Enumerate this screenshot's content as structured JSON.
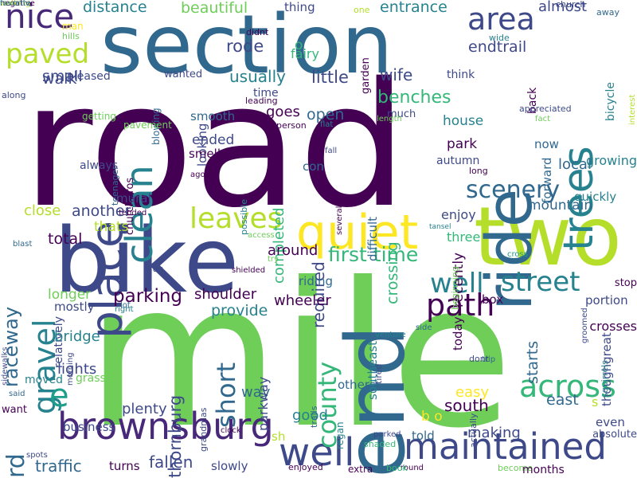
{
  "palette": {
    "background": "#ffffff",
    "colormap": "viridis",
    "dark_purple": "#440154",
    "indigo": "#482878",
    "blue_purple": "#3e4989",
    "slate_blue": "#31688e",
    "blue": "#26828e",
    "teal": "#1f9e89",
    "green_teal": "#35b779",
    "green": "#6ece58",
    "lime": "#b5de2b",
    "yellow": "#fde725"
  },
  "words": [
    {
      "text": "road",
      "color": "#440154",
      "orientation": "horizontal"
    },
    {
      "text": "mile",
      "color": "#6ece58",
      "orientation": "horizontal"
    },
    {
      "text": "section",
      "color": "#31688e",
      "orientation": "horizontal"
    },
    {
      "text": "bike",
      "color": "#3e4989",
      "orientation": "horizontal"
    },
    {
      "text": "two",
      "color": "#b5de2b",
      "orientation": "horizontal"
    },
    {
      "text": "ride",
      "color": "#31688e",
      "orientation": "vertical"
    },
    {
      "text": "end",
      "color": "#31688e",
      "orientation": "vertical"
    },
    {
      "text": "quiet",
      "color": "#fde725",
      "orientation": "horizontal"
    },
    {
      "text": "trees",
      "color": "#26828e",
      "orientation": "vertical"
    },
    {
      "text": "brownsburg",
      "color": "#482878",
      "orientation": "horizontal"
    },
    {
      "text": "maintained",
      "color": "#3e4989",
      "orientation": "horizontal"
    },
    {
      "text": "well",
      "color": "#3e4989",
      "orientation": "horizontal"
    },
    {
      "text": "nice",
      "color": "#482878",
      "orientation": "horizontal"
    },
    {
      "text": "path",
      "color": "#440154",
      "orientation": "horizontal"
    },
    {
      "text": "scenery",
      "color": "#31688e",
      "orientation": "horizontal"
    },
    {
      "text": "street",
      "color": "#26828e",
      "orientation": "horizontal"
    },
    {
      "text": "across",
      "color": "#35b779",
      "orientation": "horizontal"
    },
    {
      "text": "area",
      "color": "#3e4989",
      "orientation": "horizontal"
    },
    {
      "text": "leaves",
      "color": "#b5de2b",
      "orientation": "horizontal"
    },
    {
      "text": "place",
      "color": "#3e4989",
      "orientation": "vertical"
    },
    {
      "text": "clean",
      "color": "#26828e",
      "orientation": "vertical"
    },
    {
      "text": "paved",
      "color": "#b5de2b",
      "orientation": "horizontal"
    },
    {
      "text": "raceway",
      "color": "#31688e",
      "orientation": "vertical"
    },
    {
      "text": "gravel",
      "color": "#26828e",
      "orientation": "vertical"
    },
    {
      "text": "county",
      "color": "#35b779",
      "orientation": "vertical"
    },
    {
      "text": "short",
      "color": "#31688e",
      "orientation": "vertical"
    },
    {
      "text": "e",
      "color": "#1f9e89",
      "orientation": "horizontal"
    },
    {
      "text": "well",
      "color": "#26828e",
      "orientation": "horizontal"
    },
    {
      "text": "parking",
      "color": "#440154",
      "orientation": "horizontal"
    },
    {
      "text": "first time",
      "color": "#35b779",
      "orientation": "horizontal"
    },
    {
      "text": "thornburg",
      "color": "#3e4989",
      "orientation": "vertical"
    },
    {
      "text": "rd",
      "color": "#31688e",
      "orientation": "vertical"
    },
    {
      "text": "traffic",
      "color": "#31688e",
      "orientation": "horizontal"
    },
    {
      "text": "fallen",
      "color": "#3e4989",
      "orientation": "horizontal"
    },
    {
      "text": "south",
      "color": "#440154",
      "orientation": "horizontal"
    },
    {
      "text": "east",
      "color": "#31688e",
      "orientation": "horizontal"
    },
    {
      "text": "local",
      "color": "#31688e",
      "orientation": "horizontal"
    },
    {
      "text": "mountain",
      "color": "#31688e",
      "orientation": "horizontal"
    },
    {
      "text": "park",
      "color": "#440154",
      "orientation": "horizontal"
    },
    {
      "text": "crossing",
      "color": "#35b779",
      "orientation": "vertical"
    },
    {
      "text": "open",
      "color": "#31688e",
      "orientation": "horizontal"
    },
    {
      "text": "wife",
      "color": "#3e4989",
      "orientation": "horizontal"
    },
    {
      "text": "little",
      "color": "#3e4989",
      "orientation": "horizontal"
    },
    {
      "text": "benches",
      "color": "#35b779",
      "orientation": "horizontal"
    },
    {
      "text": "rode",
      "color": "#3e4989",
      "orientation": "horizontal"
    },
    {
      "text": "usually",
      "color": "#26828e",
      "orientation": "horizontal"
    },
    {
      "text": "walk",
      "color": "#3e4989",
      "orientation": "horizontal"
    },
    {
      "text": "small",
      "color": "#3e4989",
      "orientation": "horizontal"
    },
    {
      "text": "distance",
      "color": "#26828e",
      "orientation": "horizontal"
    },
    {
      "text": "beautiful",
      "color": "#6ece58",
      "orientation": "horizontal"
    },
    {
      "text": "entrance",
      "color": "#26828e",
      "orientation": "horizontal"
    },
    {
      "text": "almost",
      "color": "#3e4989",
      "orientation": "horizontal"
    },
    {
      "text": "endtrail",
      "color": "#3e4989",
      "orientation": "horizontal"
    },
    {
      "text": "thing",
      "color": "#3e4989",
      "orientation": "horizontal"
    },
    {
      "text": "fairy",
      "color": "#35b779",
      "orientation": "horizontal"
    },
    {
      "text": "o",
      "color": "#35b779",
      "orientation": "horizontal"
    },
    {
      "text": "garden",
      "color": "#440154",
      "orientation": "vertical"
    },
    {
      "text": "one",
      "color": "#b5de2b",
      "orientation": "horizontal"
    },
    {
      "text": "away",
      "color": "#31688e",
      "orientation": "horizontal"
    },
    {
      "text": "church",
      "color": "#3e4989",
      "orientation": "horizontal"
    },
    {
      "text": "wide",
      "color": "#26828e",
      "orientation": "horizontal"
    },
    {
      "text": "man",
      "color": "#fde725",
      "orientation": "horizontal"
    },
    {
      "text": "hills",
      "color": "#6ece58",
      "orientation": "horizontal"
    },
    {
      "text": "didnt",
      "color": "#440154",
      "orientation": "horizontal"
    },
    {
      "text": "pleased",
      "color": "#3e4989",
      "orientation": "horizontal"
    },
    {
      "text": "wanted",
      "color": "#3e4989",
      "orientation": "horizontal"
    },
    {
      "text": "think",
      "color": "#3e4989",
      "orientation": "horizontal"
    },
    {
      "text": "back",
      "color": "#440154",
      "orientation": "vertical"
    },
    {
      "text": "fact",
      "color": "#6ece58",
      "orientation": "horizontal"
    },
    {
      "text": "interest",
      "color": "#b5de2b",
      "orientation": "vertical"
    },
    {
      "text": "bicycle",
      "color": "#26828e",
      "orientation": "vertical"
    },
    {
      "text": "time",
      "color": "#3e4989",
      "orientation": "horizontal"
    },
    {
      "text": "leading",
      "color": "#440154",
      "orientation": "horizontal"
    },
    {
      "text": "along",
      "color": "#3e4989",
      "orientation": "horizontal"
    },
    {
      "text": "blowing",
      "color": "#31688e",
      "orientation": "vertical"
    },
    {
      "text": "getting",
      "color": "#6ece58",
      "orientation": "horizontal"
    },
    {
      "text": "goes",
      "color": "#440154",
      "orientation": "horizontal"
    },
    {
      "text": "much",
      "color": "#3e4989",
      "orientation": "horizontal"
    },
    {
      "text": "person",
      "color": "#440154",
      "orientation": "horizontal"
    },
    {
      "text": "flat",
      "color": "#26828e",
      "orientation": "horizontal"
    },
    {
      "text": "length",
      "color": "#6ece58",
      "orientation": "horizontal"
    },
    {
      "text": "appreciated",
      "color": "#3e4989",
      "orientation": "horizontal"
    },
    {
      "text": "now",
      "color": "#31688e",
      "orientation": "horizontal"
    },
    {
      "text": "house",
      "color": "#26828e",
      "orientation": "horizontal"
    },
    {
      "text": "growing",
      "color": "#26828e",
      "orientation": "horizontal"
    },
    {
      "text": "forward",
      "color": "#31688e",
      "orientation": "vertical"
    },
    {
      "text": "smooth",
      "color": "#31688e",
      "orientation": "horizontal"
    },
    {
      "text": "looking",
      "color": "#3e4989",
      "orientation": "vertical"
    },
    {
      "text": "ended",
      "color": "#3e4989",
      "orientation": "horizontal"
    },
    {
      "text": "smells",
      "color": "#440154",
      "orientation": "horizontal"
    },
    {
      "text": "fall",
      "color": "#3e4989",
      "orientation": "horizontal"
    },
    {
      "text": "con",
      "color": "#31688e",
      "orientation": "horizontal"
    },
    {
      "text": "autumn",
      "color": "#3e4989",
      "orientation": "horizontal"
    },
    {
      "text": "long",
      "color": "#440154",
      "orientation": "horizontal"
    },
    {
      "text": "blast",
      "color": "#31688e",
      "orientation": "horizontal"
    },
    {
      "text": "always",
      "color": "#3e4989",
      "orientation": "horizontal"
    },
    {
      "text": "pavement",
      "color": "#6ece58",
      "orientation": "horizontal"
    },
    {
      "text": "churchpros",
      "color": "#440154",
      "orientation": "vertical"
    },
    {
      "text": "teenager",
      "color": "#31688e",
      "orientation": "vertical"
    },
    {
      "text": "ago",
      "color": "#440154",
      "orientation": "horizontal"
    },
    {
      "text": "quickly",
      "color": "#26828e",
      "orientation": "horizontal"
    },
    {
      "text": "another",
      "color": "#3e4989",
      "orientation": "horizontal"
    },
    {
      "text": "close",
      "color": "#b5de2b",
      "orientation": "horizontal"
    },
    {
      "text": "mural",
      "color": "#3e4989",
      "orientation": "horizontal"
    },
    {
      "text": "completed",
      "color": "#35b779",
      "orientation": "vertical"
    },
    {
      "text": "difficult",
      "color": "#31688e",
      "orientation": "vertical"
    },
    {
      "text": "enjoy",
      "color": "#3e4989",
      "orientation": "horizontal"
    },
    {
      "text": "possible",
      "color": "#26828e",
      "orientation": "vertical"
    },
    {
      "text": "several",
      "color": "#440154",
      "orientation": "vertical"
    },
    {
      "text": "tansel",
      "color": "#26828e",
      "orientation": "horizontal"
    },
    {
      "text": "tended",
      "color": "#440154",
      "orientation": "horizontal"
    },
    {
      "text": "access",
      "color": "#6ece58",
      "orientation": "horizontal"
    },
    {
      "text": "thats",
      "color": "#b5de2b",
      "orientation": "horizontal"
    },
    {
      "text": "total",
      "color": "#440154",
      "orientation": "horizontal"
    },
    {
      "text": "around",
      "color": "#440154",
      "orientation": "horizontal"
    },
    {
      "text": "three",
      "color": "#35b779",
      "orientation": "horizontal"
    },
    {
      "text": "recently",
      "color": "#440154",
      "orientation": "vertical"
    },
    {
      "text": "cross",
      "color": "#1f9e89",
      "orientation": "horizontal"
    },
    {
      "text": "stop",
      "color": "#440154",
      "orientation": "horizontal"
    },
    {
      "text": "run",
      "color": "#3e4989",
      "orientation": "horizontal"
    },
    {
      "text": "try",
      "color": "#6ece58",
      "orientation": "horizontal"
    },
    {
      "text": "required",
      "color": "#3e4989",
      "orientation": "vertical"
    },
    {
      "text": "beginning",
      "color": "#6ece58",
      "orientation": "vertical"
    },
    {
      "text": "shielded",
      "color": "#440154",
      "orientation": "horizontal"
    },
    {
      "text": "riding",
      "color": "#31688e",
      "orientation": "horizontal"
    },
    {
      "text": "longer",
      "color": "#6ece58",
      "orientation": "horizontal"
    },
    {
      "text": "shoulder",
      "color": "#440154",
      "orientation": "horizontal"
    },
    {
      "text": "box",
      "color": "#440154",
      "orientation": "horizontal"
    },
    {
      "text": "portion",
      "color": "#3e4989",
      "orientation": "horizontal"
    },
    {
      "text": "mostly",
      "color": "#3e4989",
      "orientation": "horizontal"
    },
    {
      "text": "provide",
      "color": "#26828e",
      "orientation": "horizontal"
    },
    {
      "text": "wheeler",
      "color": "#440154",
      "orientation": "horizontal"
    },
    {
      "text": "right",
      "color": "#26828e",
      "orientation": "horizontal"
    },
    {
      "text": "lot",
      "color": "#31688e",
      "orientation": "horizontal"
    },
    {
      "text": "side",
      "color": "#31688e",
      "orientation": "horizontal"
    },
    {
      "text": "groomed",
      "color": "#3e4989",
      "orientation": "vertical"
    },
    {
      "text": "crosses",
      "color": "#440154",
      "orientation": "horizontal"
    },
    {
      "text": "relatively",
      "color": "#3e4989",
      "orientation": "vertical"
    },
    {
      "text": "round",
      "color": "#440154",
      "orientation": "horizontal"
    },
    {
      "text": "today",
      "color": "#440154",
      "orientation": "vertical"
    },
    {
      "text": "bridge",
      "color": "#26828e",
      "orientation": "horizontal"
    },
    {
      "text": "others",
      "color": "#31688e",
      "orientation": "horizontal"
    },
    {
      "text": "venture",
      "color": "#26828e",
      "orientation": "horizontal"
    },
    {
      "text": "trip",
      "color": "#31688e",
      "orientation": "horizontal"
    },
    {
      "text": "thoughgreat",
      "color": "#3e4989",
      "orientation": "vertical"
    },
    {
      "text": "sidewalks",
      "color": "#3e4989",
      "orientation": "vertical"
    },
    {
      "text": "morning",
      "color": "#3e4989",
      "orientation": "vertical"
    },
    {
      "text": "moved",
      "color": "#26828e",
      "orientation": "horizontal"
    },
    {
      "text": "plenty",
      "color": "#3e4989",
      "orientation": "horizontal"
    },
    {
      "text": "way",
      "color": "#31688e",
      "orientation": "horizontal"
    },
    {
      "text": "parkway",
      "color": "#3e4989",
      "orientation": "vertical"
    },
    {
      "text": "southeast",
      "color": "#26828e",
      "orientation": "vertical"
    },
    {
      "text": "starts",
      "color": "#31688e",
      "orientation": "vertical"
    },
    {
      "text": "squirrels",
      "color": "#26828e",
      "orientation": "vertical"
    },
    {
      "text": "dont",
      "color": "#3e4989",
      "orientation": "horizontal"
    },
    {
      "text": "said",
      "color": "#31688e",
      "orientation": "horizontal"
    },
    {
      "text": "lights",
      "color": "#3e4989",
      "orientation": "horizontal"
    },
    {
      "text": "grass",
      "color": "#6ece58",
      "orientation": "horizontal"
    },
    {
      "text": "tired",
      "color": "#3e4989",
      "orientation": "vertical"
    },
    {
      "text": "good",
      "color": "#26828e",
      "orientation": "horizontal"
    },
    {
      "text": "easy",
      "color": "#fde725",
      "orientation": "horizontal"
    },
    {
      "text": "want",
      "color": "#440154",
      "orientation": "horizontal"
    },
    {
      "text": "grandmas",
      "color": "#3e4989",
      "orientation": "vertical"
    },
    {
      "text": "b o",
      "color": "#fde725",
      "orientation": "horizontal"
    },
    {
      "text": "s",
      "color": "#b5de2b",
      "orientation": "horizontal"
    },
    {
      "text": "trails",
      "color": "#31688e",
      "orientation": "vertical"
    },
    {
      "text": "actually",
      "color": "#3e4989",
      "orientation": "vertical"
    },
    {
      "text": "even",
      "color": "#3e4989",
      "orientation": "horizontal"
    },
    {
      "text": "business",
      "color": "#3e4989",
      "orientation": "horizontal"
    },
    {
      "text": "making",
      "color": "#3e4989",
      "orientation": "horizontal"
    },
    {
      "text": "clock",
      "color": "#440154",
      "orientation": "horizontal"
    },
    {
      "text": "spots",
      "color": "#3e4989",
      "orientation": "horizontal"
    },
    {
      "text": "sh",
      "color": "#b5de2b",
      "orientation": "horizontal"
    },
    {
      "text": "told",
      "color": "#31688e",
      "orientation": "horizontal"
    },
    {
      "text": "regan",
      "color": "#26828e",
      "orientation": "vertical"
    },
    {
      "text": "absolute",
      "color": "#3e4989",
      "orientation": "horizontal"
    },
    {
      "text": "shaded",
      "color": "#35b779",
      "orientation": "horizontal"
    },
    {
      "text": "parked",
      "color": "#3e4989",
      "orientation": "horizontal"
    },
    {
      "text": "slowly",
      "color": "#3e4989",
      "orientation": "horizontal"
    },
    {
      "text": "turns",
      "color": "#440154",
      "orientation": "horizontal"
    },
    {
      "text": "enjoyed",
      "color": "#440154",
      "orientation": "horizontal"
    },
    {
      "text": "extra",
      "color": "#440154",
      "orientation": "horizontal"
    },
    {
      "text": "book",
      "color": "#35b779",
      "orientation": "horizontal"
    },
    {
      "text": "become",
      "color": "#6ece58",
      "orientation": "horizontal"
    },
    {
      "text": "months",
      "color": "#440154",
      "orientation": "horizontal"
    },
    {
      "text": "walking",
      "color": "#b5de2b",
      "orientation": "horizontal"
    },
    {
      "text": "negative",
      "color": "#440154",
      "orientation": "horizontal"
    },
    {
      "text": "favorite",
      "color": "#26828e",
      "orientation": "horizontal"
    }
  ]
}
